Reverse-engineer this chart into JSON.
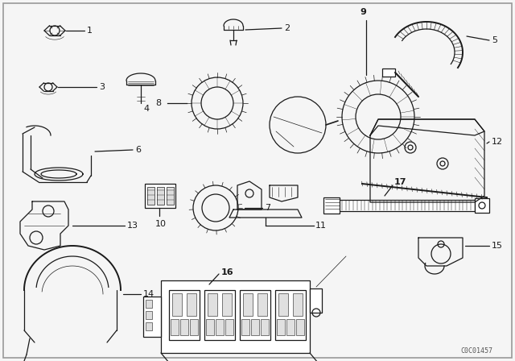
{
  "background_color": "#f5f5f5",
  "line_color": "#1a1a1a",
  "diagram_id": "C0C01457",
  "figsize": [
    6.4,
    4.48
  ],
  "dpi": 100,
  "parts": [
    1,
    2,
    3,
    4,
    5,
    6,
    7,
    8,
    9,
    10,
    11,
    12,
    13,
    14,
    15,
    16,
    17
  ]
}
